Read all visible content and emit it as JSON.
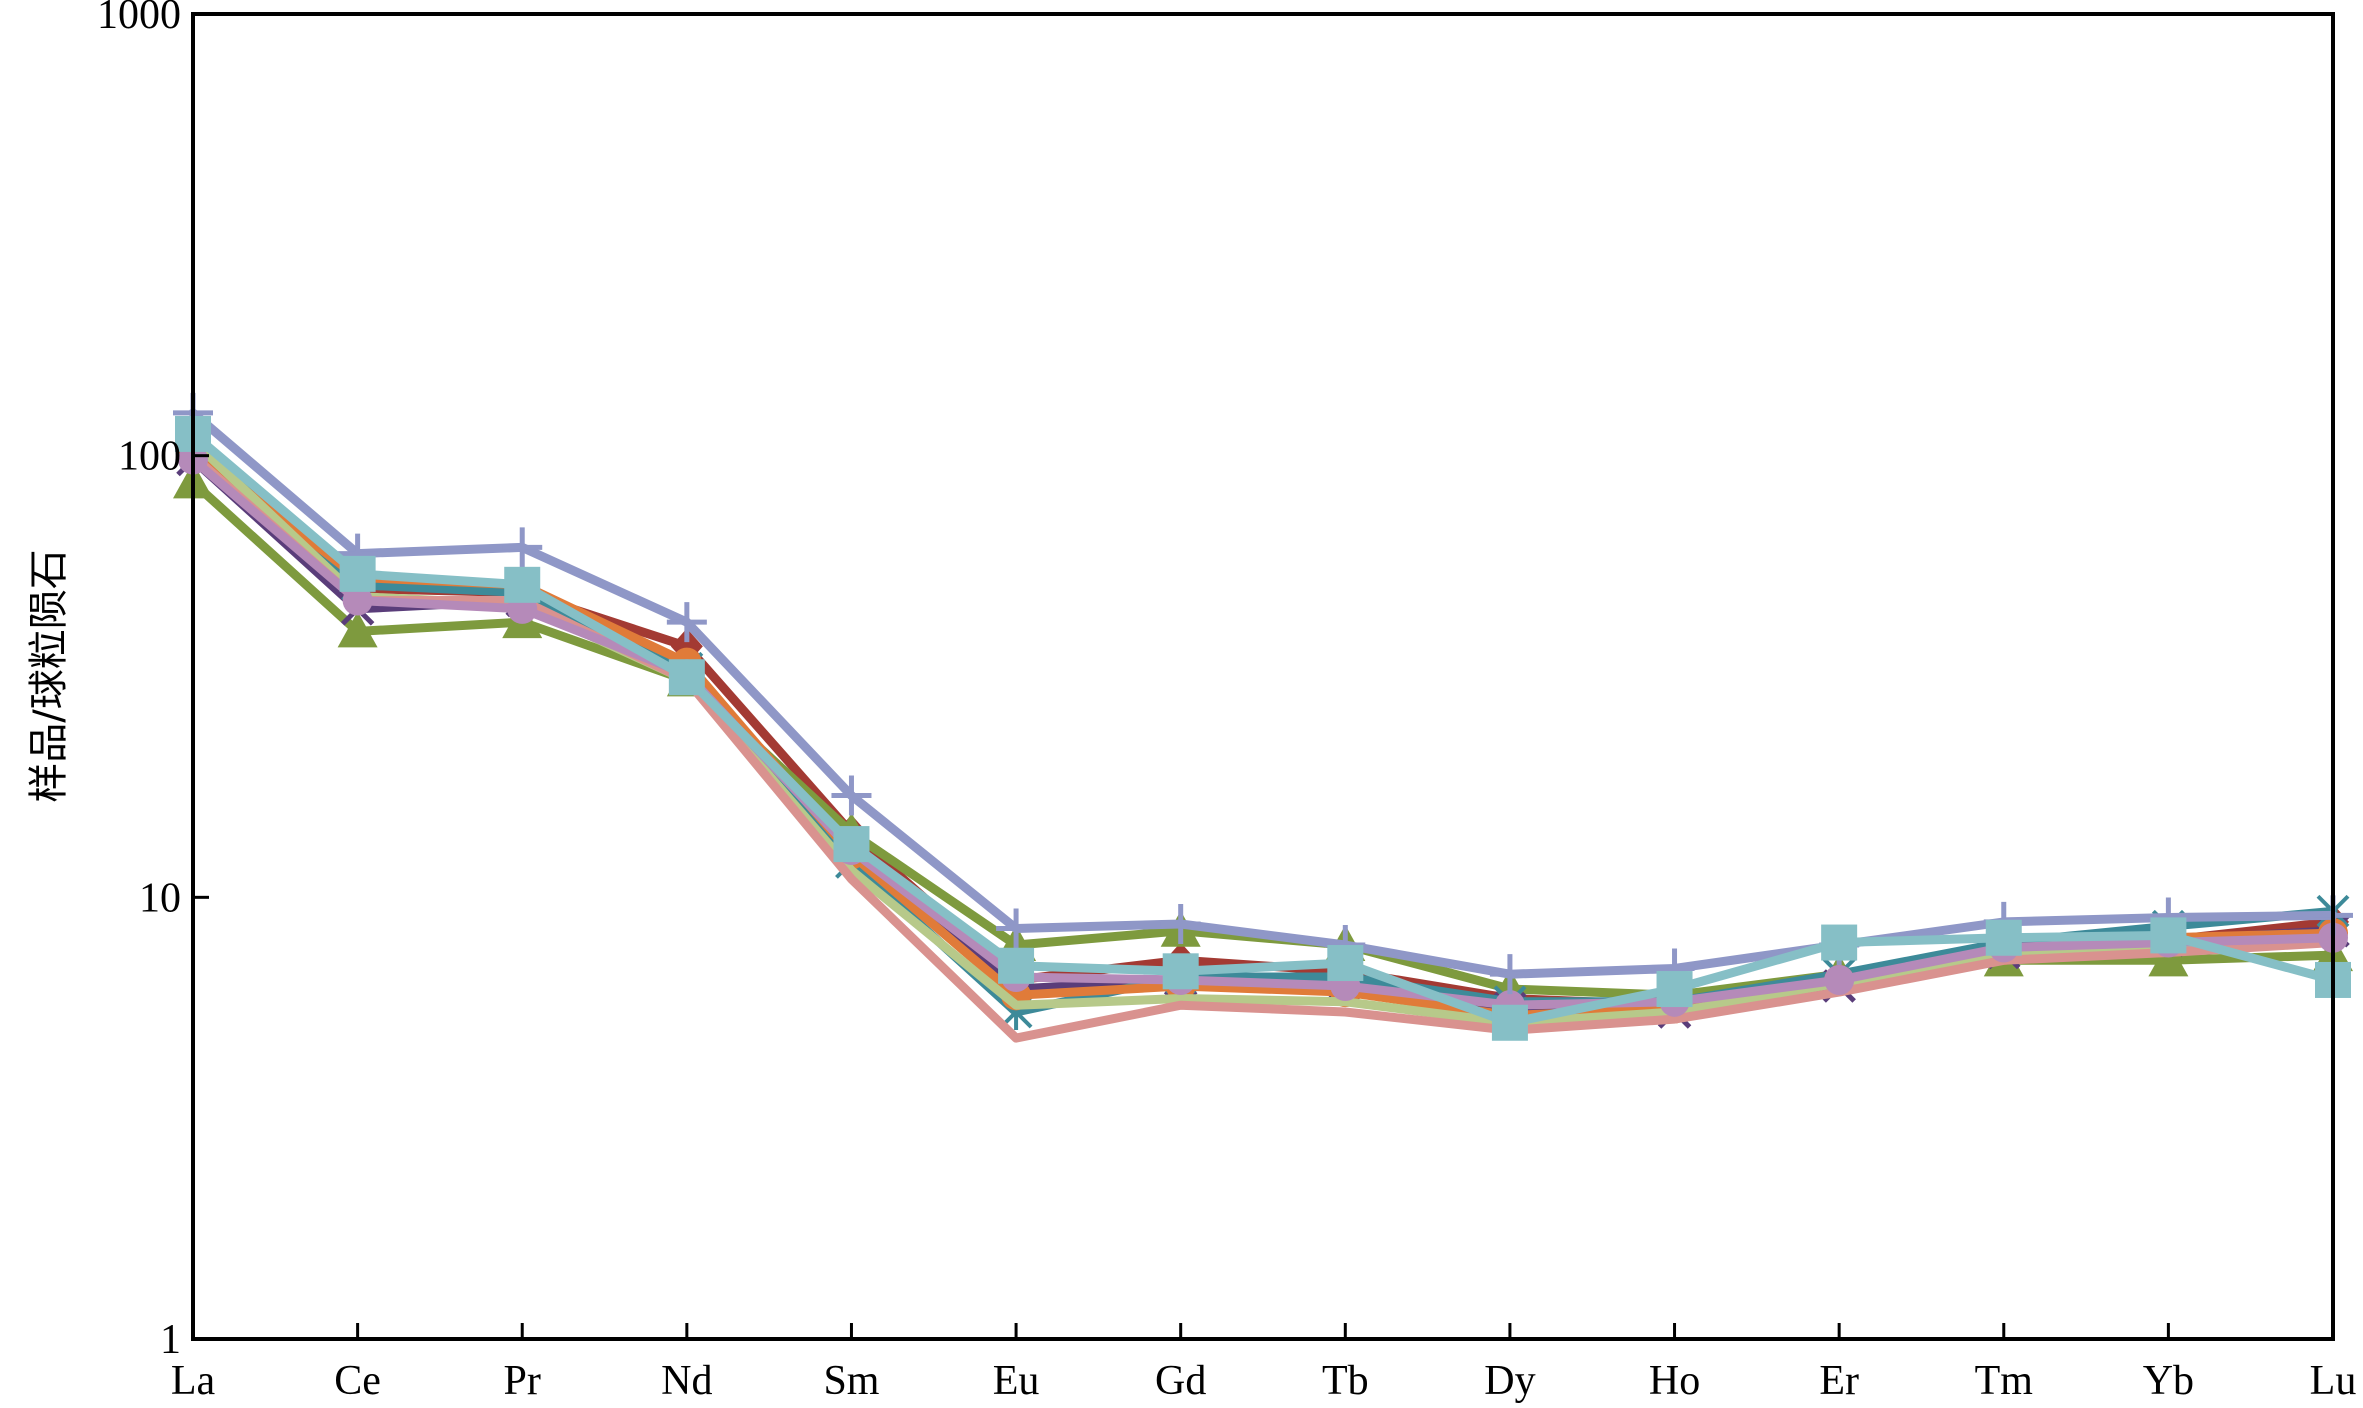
{
  "chart_data": {
    "type": "line",
    "title": "",
    "xlabel": "",
    "ylabel": "样品/球粒陨石",
    "y_scale": "log",
    "ylim": [
      1,
      1000
    ],
    "y_ticks": [
      1,
      10,
      100,
      1000
    ],
    "y_tick_labels": [
      "1",
      "10",
      "100",
      "1000"
    ],
    "categories": [
      "La",
      "Ce",
      "Pr",
      "Nd",
      "Sm",
      "Eu",
      "Gd",
      "Tb",
      "Dy",
      "Ho",
      "Er",
      "Tm",
      "Yb",
      "Lu"
    ],
    "grid": false,
    "legend": "none",
    "series": [
      {
        "color": "#a33a33",
        "marker": "diamond",
        "values": [
          100,
          50,
          49,
          37,
          14,
          6.5,
          7.2,
          6.8,
          5.9,
          5.7,
          6.6,
          7.8,
          8.0,
          8.8
        ]
      },
      {
        "color": "#7e9a3e",
        "marker": "triangle",
        "values": [
          87,
          40,
          42,
          31,
          14,
          7.8,
          8.4,
          7.8,
          6.2,
          6.0,
          6.7,
          7.2,
          7.2,
          7.4
        ]
      },
      {
        "color": "#5a3d7a",
        "marker": "x",
        "values": [
          98,
          45,
          47,
          32,
          13,
          6.2,
          6.5,
          6.4,
          5.6,
          5.5,
          6.3,
          7.5,
          8.0,
          8.4
        ]
      },
      {
        "color": "#3d8a99",
        "marker": "asterisk",
        "values": [
          106,
          51,
          49,
          33,
          12,
          5.5,
          6.6,
          6.6,
          5.8,
          5.8,
          6.7,
          7.9,
          8.6,
          9.3
        ]
      },
      {
        "color": "#e07b39",
        "marker": "circle",
        "values": [
          103,
          53,
          51,
          34,
          12.5,
          6.0,
          6.3,
          6.1,
          5.4,
          5.6,
          6.5,
          7.6,
          8.1,
          8.3
        ]
      },
      {
        "color": "#b7c98a",
        "marker": "line",
        "values": [
          108,
          48,
          46,
          31,
          11.5,
          5.7,
          5.9,
          5.8,
          5.2,
          5.5,
          6.4,
          7.4,
          7.7,
          8.1
        ]
      },
      {
        "color": "#d9928f",
        "marker": "line",
        "values": [
          100,
          47,
          47,
          31,
          11,
          4.8,
          5.7,
          5.5,
          5.0,
          5.3,
          6.1,
          7.2,
          7.5,
          7.9
        ]
      },
      {
        "color": "#b58ab9",
        "marker": "circle",
        "values": [
          98,
          47,
          45,
          32,
          12.8,
          6.6,
          6.5,
          6.3,
          5.7,
          5.8,
          6.5,
          7.7,
          7.9,
          8.1
        ]
      },
      {
        "color": "#8f97c7",
        "marker": "plus",
        "values": [
          125,
          60,
          62,
          42,
          17,
          8.5,
          8.7,
          7.8,
          6.7,
          6.9,
          7.8,
          8.8,
          9.0,
          9.1
        ]
      },
      {
        "color": "#86bfc6",
        "marker": "square",
        "values": [
          112,
          54,
          51,
          31.5,
          13.2,
          7.0,
          6.8,
          7.1,
          5.2,
          6.2,
          7.9,
          8.1,
          8.2,
          6.5
        ]
      }
    ]
  }
}
